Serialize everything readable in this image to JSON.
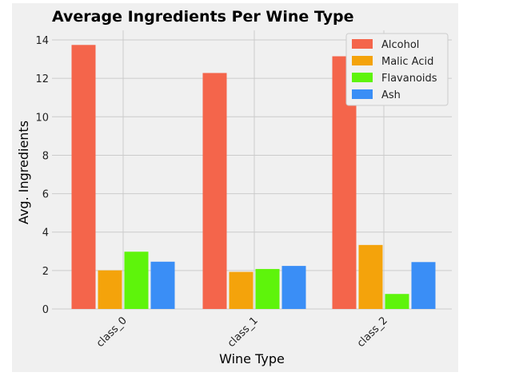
{
  "chart_data": {
    "type": "bar",
    "title": "Average Ingredients Per Wine Type",
    "xlabel": "Wine Type",
    "ylabel": "Avg. Ingredients",
    "categories": [
      "class_0",
      "class_1",
      "class_2"
    ],
    "series": [
      {
        "name": "Alcohol",
        "color": "#f4654b",
        "values": [
          13.74,
          12.28,
          13.15
        ]
      },
      {
        "name": "Malic Acid",
        "color": "#f4a30b",
        "values": [
          2.01,
          1.93,
          3.33
        ]
      },
      {
        "name": "Flavanoids",
        "color": "#5ef40b",
        "values": [
          2.98,
          2.08,
          0.78
        ]
      },
      {
        "name": "Ash",
        "color": "#3a8ef6",
        "values": [
          2.46,
          2.24,
          2.44
        ]
      }
    ],
    "ylim": [
      0,
      14.5
    ],
    "yticks": [
      "0",
      "2",
      "4",
      "6",
      "8",
      "10",
      "12",
      "14"
    ],
    "grid": true,
    "legend_position": "top-right"
  }
}
